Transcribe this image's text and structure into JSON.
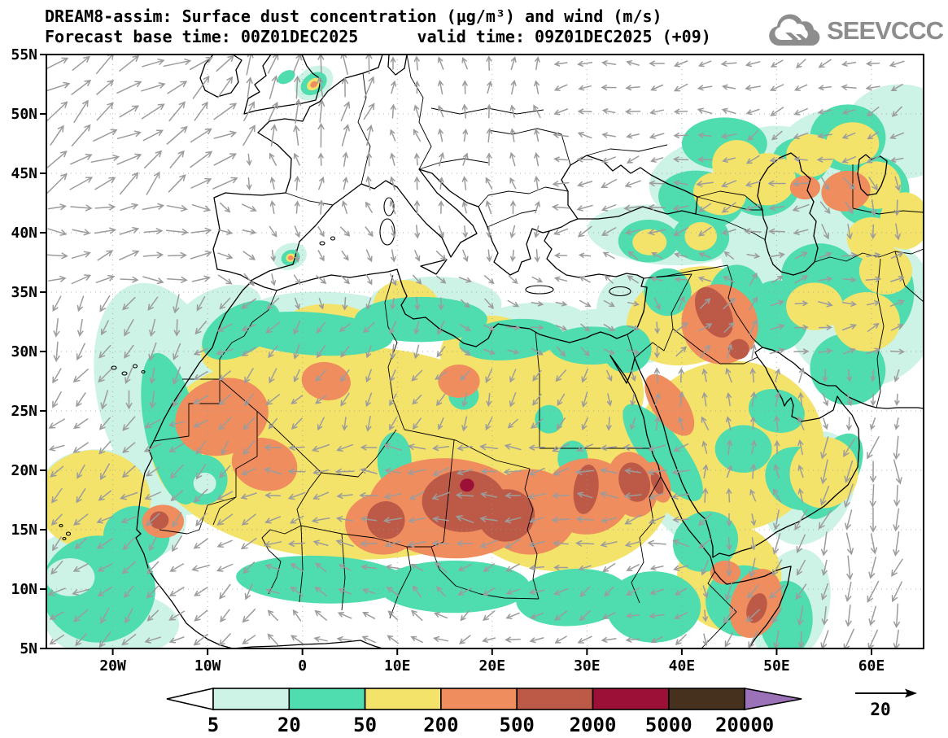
{
  "header": {
    "title_line1": "DREAM8-assim: Surface dust concentration (µg/m³) and wind (m/s)",
    "title_line2": "Forecast base time: 00Z01DEC2025      valid time: 09Z01DEC2025 (+09)",
    "logo_text": "SEEVCCC"
  },
  "chart_data": {
    "type": "heatmap",
    "title": "DREAM8-assim: Surface dust concentration (µg/m³) and wind (m/s)",
    "model": "DREAM8-assim",
    "variable": "Surface dust concentration",
    "units": "µg/m³",
    "wind_units": "m/s",
    "forecast_base_time": "00Z01DEC2025",
    "valid_time": "09Z01DEC2025",
    "lead": "+09",
    "x_axis": {
      "tick_labels": [
        "20W",
        "10W",
        "0",
        "10E",
        "20E",
        "30E",
        "40E",
        "50E",
        "60E"
      ],
      "tick_lons": [
        -20,
        -10,
        0,
        10,
        20,
        30,
        40,
        50,
        60
      ],
      "range_lon": [
        -27,
        65.5
      ]
    },
    "y_axis": {
      "tick_labels": [
        "55N",
        "50N",
        "45N",
        "40N",
        "35N",
        "30N",
        "25N",
        "20N",
        "15N",
        "10N",
        "5N"
      ],
      "tick_lats": [
        55,
        50,
        45,
        40,
        35,
        30,
        25,
        20,
        15,
        10,
        5
      ],
      "range_lat": [
        5,
        55
      ]
    },
    "legend": {
      "values": [
        "5",
        "20",
        "50",
        "200",
        "500",
        "2000",
        "5000",
        "20000"
      ],
      "band_colors": [
        "#cdf2e6",
        "#4fdcae",
        "#f4e36a",
        "#ef8d5e",
        "#bd5a47",
        "#9c1038",
        "#46311f"
      ],
      "under_color": "#ffffff",
      "over_color": "#9b72b8"
    },
    "wind_reference": {
      "label": "20",
      "units": "m/s"
    },
    "colors": {
      "c5": "#cdf2e6",
      "c20": "#4fdcae",
      "c50": "#f4e36a",
      "c200": "#ef8d5e",
      "c500": "#bd5a47",
      "c2000": "#9c1038",
      "c5000": "#46311f",
      "c20000": "#9b72b8",
      "arrow": "#9c9c9c",
      "grid": "#9a9a9a",
      "coast": "#000000",
      "logo": "#8d8d8d",
      "background": "#ffffff"
    },
    "grid": {
      "lat_step": 5,
      "lon_step": 10,
      "style": "dotted"
    },
    "dust_blobs": [
      [
        5,
        -14.5,
        26,
        7,
        10,
        -15
      ],
      [
        5,
        -20,
        17,
        8,
        4.5,
        20
      ],
      [
        5,
        -23,
        10.5,
        6.5,
        4.5,
        0
      ],
      [
        5,
        -20,
        7,
        7,
        2.8,
        0
      ],
      [
        5,
        -9,
        33,
        5,
        2.2,
        -25
      ],
      [
        5,
        3,
        32.8,
        9,
        2.2,
        3
      ],
      [
        5,
        14,
        34,
        7,
        2.3,
        0
      ],
      [
        5,
        24,
        32.3,
        6,
        1.8,
        -5
      ],
      [
        5,
        31.5,
        31.8,
        5,
        1.8,
        0
      ],
      [
        5,
        34.5,
        33.5,
        3.5,
        3,
        0
      ],
      [
        5,
        38,
        39.8,
        8,
        2.5,
        5
      ],
      [
        5,
        43.5,
        44.5,
        7,
        3.5,
        -10
      ],
      [
        5,
        50,
        45.5,
        6,
        3.5,
        0
      ],
      [
        5,
        52,
        39,
        8,
        6,
        0
      ],
      [
        5,
        59,
        33.5,
        8,
        6.5,
        0
      ],
      [
        5,
        57,
        46.5,
        7,
        4,
        0
      ],
      [
        5,
        63,
        48.5,
        6,
        4,
        0
      ],
      [
        5,
        45.5,
        24,
        3,
        2.5,
        0
      ],
      [
        5,
        53.5,
        18.5,
        4.5,
        5,
        25
      ],
      [
        5,
        51.5,
        8.5,
        4,
        5,
        15
      ],
      [
        5,
        39.5,
        19,
        4,
        7,
        -35
      ],
      [
        5,
        1.2,
        52.6,
        2.2,
        1.3,
        -35
      ],
      [
        5,
        -1.3,
        38,
        1.8,
        1.1,
        -20
      ],
      [
        5,
        -10.5,
        19,
        3.2,
        2.6,
        0
      ],
      [
        5,
        36,
        31,
        3,
        2,
        0
      ],
      [
        50,
        5,
        21.5,
        21,
        9,
        2
      ],
      [
        50,
        -22,
        17.5,
        6,
        4.2,
        0
      ],
      [
        50,
        27,
        19,
        12,
        7.5,
        3
      ],
      [
        50,
        28,
        26.5,
        8,
        5,
        0
      ],
      [
        50,
        45,
        22,
        10,
        7.2,
        -8
      ],
      [
        50,
        41,
        33,
        7,
        4,
        -18
      ],
      [
        50,
        -6.5,
        30.8,
        4.5,
        2.4,
        -28
      ],
      [
        50,
        3,
        32,
        5,
        2,
        3
      ],
      [
        50,
        11,
        33.6,
        3.6,
        2.4,
        10
      ],
      [
        50,
        19.5,
        30,
        5,
        3,
        -8
      ],
      [
        50,
        45,
        11,
        5.5,
        4.5,
        0
      ],
      [
        20,
        -6.5,
        31.8,
        4.5,
        2,
        -30
      ],
      [
        20,
        1,
        31.5,
        8.5,
        1.8,
        4
      ],
      [
        20,
        12.5,
        32.7,
        7,
        1.9,
        0
      ],
      [
        20,
        22,
        31,
        5.5,
        1.7,
        -6
      ],
      [
        20,
        30.5,
        30.5,
        4.5,
        1.6,
        0
      ],
      [
        20,
        -13.8,
        23.5,
        2.8,
        6.5,
        -12
      ],
      [
        20,
        -21.5,
        10,
        6,
        4.5,
        0
      ],
      [
        20,
        -17.5,
        14.5,
        3.5,
        2.5,
        0
      ],
      [
        20,
        2,
        10.8,
        9,
        2,
        2
      ],
      [
        20,
        16,
        10.2,
        8,
        2.2,
        0
      ],
      [
        20,
        28.5,
        9.3,
        6,
        2.4,
        -4
      ],
      [
        20,
        37,
        8.5,
        5,
        3,
        0
      ],
      [
        20,
        -10.5,
        19.2,
        2.6,
        2.1,
        0
      ],
      [
        20,
        9.7,
        20.8,
        1.8,
        2.4,
        0
      ],
      [
        20,
        17,
        26.3,
        1.6,
        1.2,
        0
      ],
      [
        20,
        26,
        24.3,
        1.5,
        1.2,
        0
      ],
      [
        20,
        28.5,
        21,
        1.6,
        1.5,
        0
      ],
      [
        20,
        34.2,
        30.2,
        2.6,
        2,
        0
      ],
      [
        20,
        38,
        21.5,
        2.2,
        5,
        -38
      ],
      [
        20,
        42.5,
        14,
        3.5,
        2.5,
        -25
      ],
      [
        20,
        46.5,
        21.8,
        3,
        2,
        0
      ],
      [
        20,
        52.5,
        19.3,
        3.8,
        2.6,
        25
      ],
      [
        20,
        55.8,
        19.5,
        2.5,
        4,
        30
      ],
      [
        20,
        50,
        25,
        3,
        1.8,
        15
      ],
      [
        20,
        46.5,
        9,
        4,
        3,
        0
      ],
      [
        20,
        51,
        7.5,
        2.8,
        3.2,
        0
      ],
      [
        20,
        45.8,
        34.5,
        3,
        2.8,
        0
      ],
      [
        20,
        50,
        33,
        3.4,
        3,
        0
      ],
      [
        20,
        54.5,
        36.5,
        4,
        2.6,
        0
      ],
      [
        20,
        60.5,
        35,
        4,
        4,
        0
      ],
      [
        20,
        57.5,
        28.5,
        4,
        3,
        15
      ],
      [
        20,
        42,
        42.8,
        4.5,
        2.4,
        8
      ],
      [
        20,
        48.5,
        44,
        4,
        2.6,
        0
      ],
      [
        20,
        44.5,
        47.5,
        4.5,
        2.2,
        0
      ],
      [
        20,
        52.5,
        46,
        3,
        2,
        0
      ],
      [
        20,
        57.5,
        48,
        4,
        2.8,
        0
      ],
      [
        20,
        60,
        43.5,
        4,
        3,
        0
      ],
      [
        20,
        36.5,
        39.3,
        3.2,
        1.8,
        0
      ],
      [
        20,
        42,
        39.6,
        3,
        2,
        0
      ],
      [
        20,
        38.5,
        35,
        2.5,
        2,
        0
      ],
      [
        20,
        1.2,
        52.55,
        1.5,
        0.85,
        -35
      ],
      [
        20,
        -1.7,
        53.1,
        1,
        0.5,
        -30
      ],
      [
        20,
        -1.25,
        37.9,
        1,
        0.65,
        -20
      ],
      [
        50,
        55,
        19.8,
        3.6,
        3,
        20
      ],
      [
        50,
        54,
        33.8,
        3,
        2,
        0
      ],
      [
        50,
        59.5,
        32.5,
        3.5,
        2.5,
        0
      ],
      [
        50,
        61.5,
        36.8,
        2.8,
        2,
        0
      ],
      [
        50,
        45.8,
        45.8,
        2.6,
        2,
        0
      ],
      [
        50,
        44,
        43.3,
        2.8,
        1.8,
        10
      ],
      [
        50,
        49,
        44.5,
        3,
        2.2,
        0
      ],
      [
        50,
        53.5,
        46.5,
        2.5,
        1.8,
        0
      ],
      [
        50,
        58,
        47.5,
        2.8,
        1.8,
        0
      ],
      [
        50,
        60.5,
        44,
        2.6,
        2,
        0
      ],
      [
        50,
        63.5,
        41,
        2.6,
        2.4,
        0
      ],
      [
        50,
        60,
        39.5,
        2.6,
        1.8,
        0
      ],
      [
        50,
        36.6,
        39.2,
        1.8,
        1.1,
        0
      ],
      [
        50,
        42,
        39.7,
        1.7,
        1.2,
        0
      ],
      [
        50,
        1.2,
        52.5,
        0.8,
        0.45,
        -35
      ],
      [
        50,
        -1.25,
        37.9,
        0.5,
        0.35,
        -20
      ],
      [
        5,
        -10.3,
        18.9,
        1.2,
        0.9,
        0
      ],
      [
        5,
        -24.5,
        11,
        2.6,
        1.6,
        0
      ],
      [
        200,
        -8.5,
        24.5,
        5,
        3.2,
        -18
      ],
      [
        200,
        -4,
        20.5,
        3.5,
        2.2,
        15
      ],
      [
        200,
        -14.7,
        15.7,
        2.2,
        1.4,
        0
      ],
      [
        200,
        8.5,
        15.5,
        4,
        2.6,
        0
      ],
      [
        200,
        15.5,
        16.8,
        8.5,
        4.2,
        4
      ],
      [
        200,
        24,
        16.5,
        5,
        3.6,
        0
      ],
      [
        200,
        30,
        17.8,
        4.6,
        3.2,
        -5
      ],
      [
        200,
        34.8,
        18.8,
        2.6,
        2.8,
        -15
      ],
      [
        200,
        37.5,
        19,
        1.2,
        1.8,
        -20
      ],
      [
        200,
        2.5,
        27.5,
        2.6,
        1.6,
        10
      ],
      [
        200,
        16.5,
        27.5,
        2.2,
        1.4,
        0
      ],
      [
        200,
        44,
        32.3,
        4,
        3.4,
        -22
      ],
      [
        200,
        38.7,
        25.5,
        1.8,
        3,
        -35
      ],
      [
        200,
        47.8,
        8.8,
        2.6,
        3,
        20
      ],
      [
        200,
        44.6,
        11.4,
        1.6,
        1,
        0
      ],
      [
        200,
        57.3,
        43.5,
        2.6,
        1.7,
        -10
      ],
      [
        200,
        53,
        43.8,
        1.6,
        1,
        0
      ],
      [
        200,
        1.2,
        52.48,
        0.4,
        0.25,
        -35
      ],
      [
        200,
        -1.25,
        37.88,
        0.3,
        0.2,
        0
      ],
      [
        500,
        17,
        17.4,
        4.4,
        2.6,
        0
      ],
      [
        500,
        21.5,
        16.2,
        3,
        2.2,
        -10
      ],
      [
        500,
        8.8,
        15.8,
        2,
        1.6,
        0
      ],
      [
        500,
        29.9,
        18.4,
        1.3,
        2.1,
        8
      ],
      [
        500,
        35,
        19,
        1.6,
        1.7,
        -20
      ],
      [
        500,
        37.4,
        18.9,
        0.55,
        1,
        -20
      ],
      [
        500,
        -15.1,
        15.8,
        1,
        0.75,
        0
      ],
      [
        500,
        43.4,
        33.3,
        1.7,
        2.3,
        -28
      ],
      [
        500,
        46,
        30.2,
        1.1,
        0.85,
        -15
      ],
      [
        500,
        47.9,
        8.4,
        1,
        1.3,
        20
      ],
      [
        2000,
        17.35,
        18.75,
        0.75,
        0.55,
        -10
      ]
    ],
    "wind_zones": [
      [
        -27,
        -8,
        44,
        55,
        35,
        1.0
      ],
      [
        -8,
        8,
        47,
        55,
        80,
        0.8
      ],
      [
        -27,
        -10,
        36,
        44,
        8,
        0.7
      ],
      [
        -10,
        -4,
        36,
        44,
        -35,
        0.45
      ],
      [
        -27,
        -13,
        24,
        36,
        -115,
        0.6
      ],
      [
        -13,
        -2,
        24,
        36,
        -140,
        0.5
      ],
      [
        -27,
        -5,
        5,
        24,
        -140,
        0.55
      ],
      [
        -5,
        25,
        42,
        55,
        95,
        0.35
      ],
      [
        25,
        45,
        46,
        55,
        185,
        0.4
      ],
      [
        45,
        66,
        46,
        55,
        200,
        0.4
      ],
      [
        25,
        55,
        40,
        46,
        195,
        0.5
      ],
      [
        25,
        45,
        35,
        40,
        160,
        0.3
      ],
      [
        -5,
        15,
        35,
        42,
        -60,
        0.3
      ],
      [
        15,
        35,
        30,
        38,
        -25,
        0.3
      ],
      [
        -5,
        32,
        22,
        33,
        -120,
        0.4
      ],
      [
        -5,
        40,
        12,
        22,
        185,
        0.55
      ],
      [
        -27,
        15,
        5,
        12,
        150,
        0.4
      ],
      [
        15,
        40,
        5,
        12,
        -155,
        0.4
      ],
      [
        38,
        48,
        29,
        38,
        55,
        0.45
      ],
      [
        32,
        44,
        10,
        16,
        -125,
        0.5
      ],
      [
        35,
        55,
        16,
        29,
        95,
        0.4
      ],
      [
        44,
        56,
        5,
        13,
        -115,
        0.6
      ],
      [
        45,
        66,
        29,
        40,
        10,
        0.4
      ],
      [
        50,
        66,
        5,
        22,
        -100,
        0.85
      ],
      [
        55,
        66,
        40,
        46,
        -70,
        0.45
      ]
    ],
    "wind_default": [
      -90,
      0.3
    ]
  }
}
